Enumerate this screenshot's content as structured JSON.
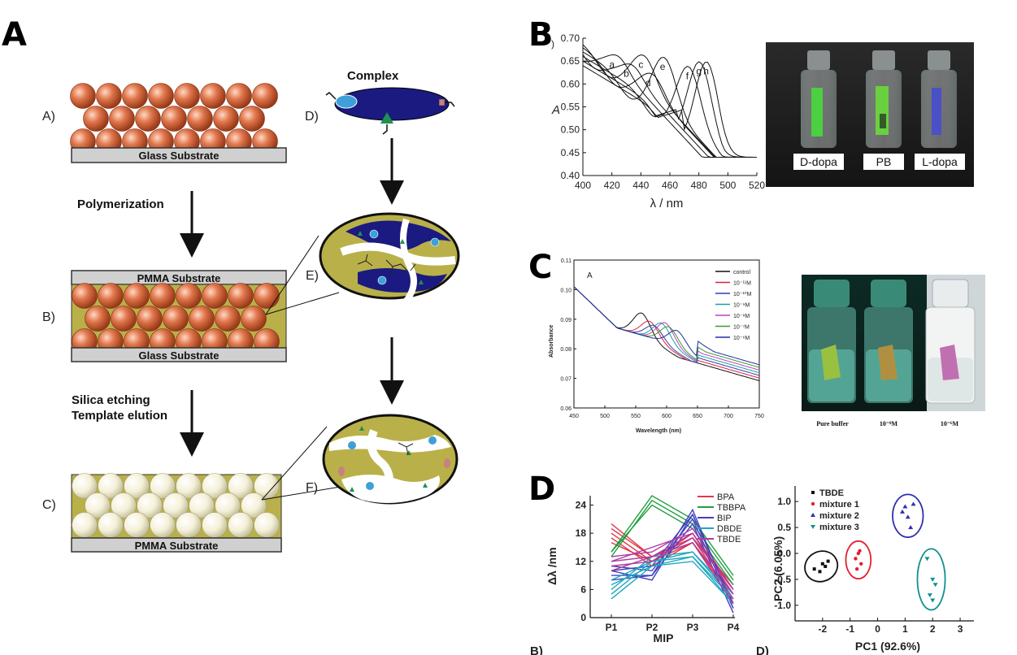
{
  "panels": {
    "A": "A",
    "B": "B",
    "C": "C",
    "D": "D"
  },
  "panelA": {
    "steps": {
      "a": "A)",
      "b": "B)",
      "c": "C)",
      "d": "D)",
      "e": "E)",
      "f": "F)"
    },
    "glass_substrate": "Glass Substrate",
    "pmma_substrate": "PMMA Substrate",
    "polymerization": "Polymerization",
    "etching_line1": "Silica etching",
    "etching_line2": "Template elution",
    "complex": "Complex",
    "colors": {
      "sphere": "#d4603a",
      "matrix": "#b9b04a",
      "blue": "#1a1a80",
      "empty_sphere": "#f3f0d8"
    }
  },
  "panelB": {
    "corner_mark": ")",
    "chart_data": {
      "type": "line",
      "xlabel": "λ / nm",
      "ylabel": "A",
      "xlim": [
        400,
        520
      ],
      "ylim": [
        0.4,
        0.7
      ],
      "x_ticks": [
        "400",
        "420",
        "440",
        "460",
        "480",
        "500",
        "520"
      ],
      "y_ticks": [
        "0.40",
        "0.45",
        "0.50",
        "0.55",
        "0.60",
        "0.65",
        "0.70"
      ],
      "peaks": [
        {
          "name": "a",
          "x": 420,
          "y": 0.625
        },
        {
          "name": "b",
          "x": 430,
          "y": 0.605
        },
        {
          "name": "c",
          "x": 440,
          "y": 0.625
        },
        {
          "name": "d",
          "x": 445,
          "y": 0.585
        },
        {
          "name": "e",
          "x": 455,
          "y": 0.62
        },
        {
          "name": "f",
          "x": 472,
          "y": 0.6
        },
        {
          "name": "g",
          "x": 480,
          "y": 0.61
        },
        {
          "name": "h",
          "x": 485,
          "y": 0.61
        }
      ]
    },
    "vials": [
      "D-dopa",
      "PB",
      "L-dopa"
    ]
  },
  "panelC": {
    "corner_mark": "A",
    "chart_data": {
      "type": "line",
      "xlabel": "Wavelength (nm)",
      "ylabel": "Absorbance",
      "xlim": [
        450,
        750
      ],
      "ylim": [
        0.06,
        0.11
      ],
      "x_ticks": [
        "450",
        "500",
        "550",
        "600",
        "650",
        "700",
        "750"
      ],
      "y_ticks": [
        "0.06",
        "0.07",
        "0.08",
        "0.09",
        "0.10",
        "0.11"
      ],
      "series": [
        {
          "name": "control",
          "color": "#111111",
          "peak_x": 560,
          "peak_y": 0.0905
        },
        {
          "name": "10⁻¹¹M",
          "color": "#e0203a",
          "peak_x": 573,
          "peak_y": 0.0885
        },
        {
          "name": "10⁻¹⁰M",
          "color": "#3a3ab0",
          "peak_x": 580,
          "peak_y": 0.0875
        },
        {
          "name": "10⁻⁹M",
          "color": "#1aa0a0",
          "peak_x": 592,
          "peak_y": 0.089
        },
        {
          "name": "10⁻⁸M",
          "color": "#c040c0",
          "peak_x": 598,
          "peak_y": 0.0895
        },
        {
          "name": "10⁻⁷M",
          "color": "#3a9a30",
          "peak_x": 604,
          "peak_y": 0.0885
        },
        {
          "name": "10⁻⁶M",
          "color": "#2030a0",
          "peak_x": 617,
          "peak_y": 0.088
        }
      ]
    },
    "photo_labels": [
      "Pure buffer",
      "10⁻⁸M",
      "10⁻⁶M"
    ]
  },
  "panelD": {
    "left_chart": {
      "type": "line",
      "xlabel": "MIP",
      "ylabel": "Δλ /nm",
      "categories": [
        "P1",
        "P2",
        "P3",
        "P4"
      ],
      "ylim": [
        0,
        26
      ],
      "y_ticks": [
        "0",
        "6",
        "12",
        "18",
        "24"
      ],
      "series": [
        {
          "name": "BPA",
          "color": "#e03848",
          "values": [
            [
              20,
              13,
              17,
              6
            ],
            [
              18,
              12,
              16,
              5
            ],
            [
              17,
              11,
              16,
              4
            ],
            [
              16,
              12,
              18,
              6
            ],
            [
              19,
              13,
              17,
              7
            ]
          ]
        },
        {
          "name": "TBBPA",
          "color": "#20a040",
          "values": [
            [
              14,
              26,
              21,
              9
            ],
            [
              13,
              25,
              20,
              8
            ],
            [
              14,
              24,
              19,
              7
            ]
          ]
        },
        {
          "name": "BIP",
          "color": "#4040c0",
          "values": [
            [
              9,
              9,
              23,
              2
            ],
            [
              10,
              8,
              22,
              3
            ],
            [
              11,
              10,
              21,
              2
            ],
            [
              8,
              9,
              20,
              1
            ],
            [
              10,
              11,
              22,
              3
            ]
          ]
        },
        {
          "name": "DBDE",
          "color": "#20a8c0",
          "values": [
            [
              4,
              11,
              13,
              3
            ],
            [
              5,
              12,
              14,
              4
            ],
            [
              6,
              13,
              14,
              5
            ],
            [
              7,
              11,
              12,
              3
            ],
            [
              8,
              12,
              13,
              4
            ]
          ]
        },
        {
          "name": "TBDE",
          "color": "#b03aa0",
          "values": [
            [
              11,
              12,
              17,
              4
            ],
            [
              12,
              13,
              18,
              5
            ],
            [
              10,
              13,
              16,
              3
            ],
            [
              13,
              14,
              19,
              6
            ],
            [
              12,
              15,
              18,
              5
            ]
          ]
        }
      ]
    },
    "right_chart": {
      "type": "scatter",
      "xlabel": "PC1 (92.6%)",
      "ylabel": "PC2 (6.05%)",
      "xlim": [
        -3,
        3.5
      ],
      "ylim": [
        -1.3,
        1.3
      ],
      "x_ticks": [
        "-2",
        "-1",
        "0",
        "1",
        "2",
        "3"
      ],
      "y_ticks": [
        "-1.0",
        "-0.5",
        "0.0",
        "0.5",
        "1.0"
      ],
      "series": [
        {
          "name": "TBDE",
          "color": "#111111",
          "marker": "square",
          "points": [
            [
              -2.3,
              -0.3
            ],
            [
              -2.0,
              -0.2
            ],
            [
              -1.8,
              -0.15
            ],
            [
              -2.1,
              -0.35
            ],
            [
              -1.9,
              -0.25
            ]
          ]
        },
        {
          "name": "mixture 1",
          "color": "#e02030",
          "marker": "circle",
          "points": [
            [
              -0.7,
              0.0
            ],
            [
              -0.8,
              -0.1
            ],
            [
              -0.6,
              -0.2
            ],
            [
              -0.75,
              -0.3
            ],
            [
              -0.65,
              0.05
            ]
          ]
        },
        {
          "name": "mixture 2",
          "color": "#3030b0",
          "marker": "triangle",
          "points": [
            [
              1.0,
              0.9
            ],
            [
              1.3,
              0.95
            ],
            [
              1.1,
              0.7
            ],
            [
              1.2,
              0.5
            ],
            [
              0.9,
              0.8
            ]
          ]
        },
        {
          "name": "mixture 3",
          "color": "#109090",
          "marker": "triangle-down",
          "points": [
            [
              1.8,
              -0.1
            ],
            [
              2.0,
              -0.5
            ],
            [
              2.1,
              -0.6
            ],
            [
              1.9,
              -0.8
            ],
            [
              2.0,
              -0.9
            ]
          ]
        }
      ]
    },
    "bottom_cut": {
      "left": "B)",
      "right": "D)"
    }
  }
}
